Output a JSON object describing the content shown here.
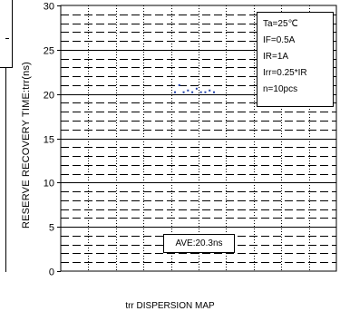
{
  "chart_data": {
    "type": "scatter",
    "ylabel": "RESERVE RECOVERY TIME:trr(ns)",
    "caption": "trr DISPERSION MAP",
    "ylim": [
      0,
      30
    ],
    "yticks": [
      0,
      5,
      10,
      15,
      20,
      25,
      30
    ],
    "grid": true,
    "series": [
      {
        "values": [
          20.2,
          21.0,
          20.2,
          20.4,
          20.2,
          20.6,
          20.2,
          20.2,
          20.4,
          20.2
        ],
        "color": "#1f3fa8"
      }
    ],
    "legend": {
      "lines": [
        "Ta=25℃",
        "IF=0.5A",
        "IR=1A",
        "Irr=0.25*IR",
        "n=10pcs"
      ],
      "placement": "top-right"
    },
    "annotation": "AVE:20.3ns"
  }
}
